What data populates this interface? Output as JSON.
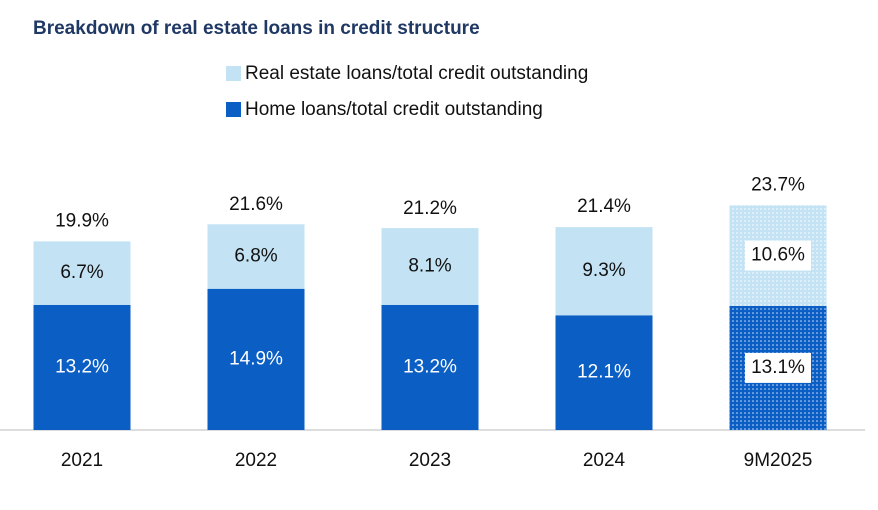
{
  "chart_data": {
    "type": "stacked_bar",
    "title": "Breakdown of real estate loans in credit structure",
    "categories": [
      "2021",
      "2022",
      "2023",
      "2024",
      "9M2025"
    ],
    "series": [
      {
        "name": "Home loans/total credit outstanding",
        "color": "#0a5ec4",
        "values": [
          13.2,
          14.9,
          13.2,
          12.1,
          13.1
        ],
        "value_labels": [
          "13.2%",
          "14.9%",
          "13.2%",
          "12.1%",
          "13.1%"
        ]
      },
      {
        "name": "Real estate loans/total credit outstanding",
        "color": "#c3e3f5",
        "values": [
          6.7,
          6.8,
          8.1,
          9.3,
          10.6
        ],
        "value_labels": [
          "6.7%",
          "6.8%",
          "8.1%",
          "9.3%",
          "10.6%"
        ]
      }
    ],
    "totals": [
      19.9,
      21.6,
      21.2,
      21.4,
      23.7
    ],
    "total_labels": [
      "19.9%",
      "21.6%",
      "21.2%",
      "21.4%",
      "23.7%"
    ],
    "dotted": [
      false,
      false,
      false,
      false,
      true
    ],
    "ylim": [
      0,
      25
    ]
  }
}
